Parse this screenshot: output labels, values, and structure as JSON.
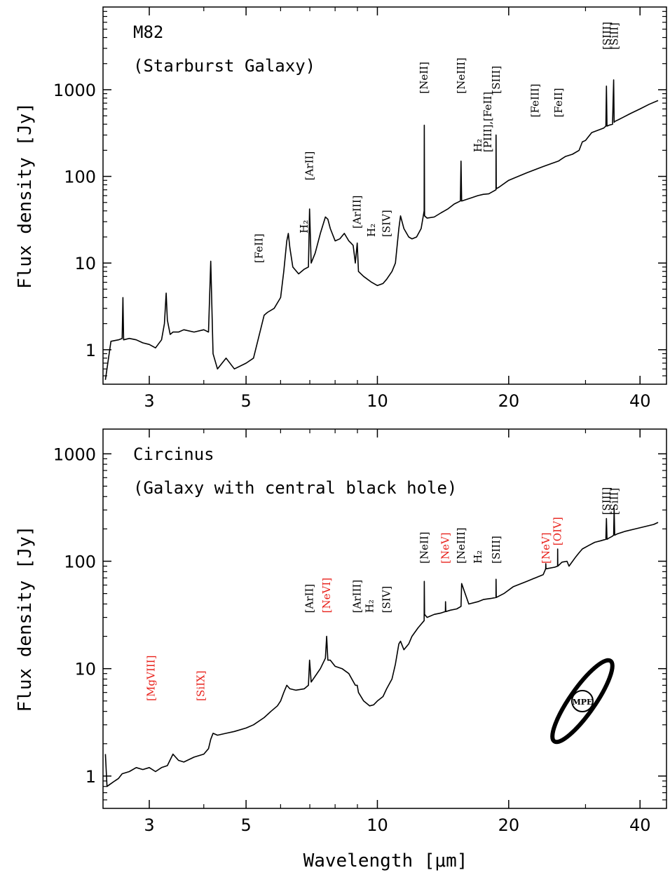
{
  "xlabel": "Wavelength [μm]",
  "chart_data": [
    {
      "type": "line",
      "title": "M82",
      "subtitle": "(Starburst Galaxy)",
      "xlabel": "",
      "ylabel": "Flux density [Jy]",
      "xscale": "log",
      "yscale": "log",
      "xlim": [
        2.35,
        46
      ],
      "ylim": [
        0.4,
        9000
      ],
      "xticks": [
        3,
        5,
        10,
        20,
        40
      ],
      "xtick_labels": [
        "3",
        "5",
        "10",
        "20",
        "40"
      ],
      "yticks": [
        1,
        10,
        100,
        1000
      ],
      "ytick_labels": [
        "1",
        "10",
        "100",
        "1000"
      ],
      "grid": false,
      "legend": "none",
      "series": [
        {
          "color": "#000000",
          "x": [
            2.38,
            2.45,
            2.55,
            2.6,
            2.61,
            2.62,
            2.7,
            2.8,
            2.9,
            3.0,
            3.1,
            3.2,
            3.25,
            3.28,
            3.3,
            3.35,
            3.4,
            3.5,
            3.6,
            3.8,
            4.0,
            4.1,
            4.15,
            4.2,
            4.3,
            4.5,
            4.7,
            5.0,
            5.2,
            5.5,
            5.6,
            5.8,
            6.0,
            6.1,
            6.2,
            6.25,
            6.3,
            6.4,
            6.6,
            6.8,
            6.95,
            6.99,
            7.05,
            7.2,
            7.4,
            7.6,
            7.7,
            7.8,
            8.0,
            8.2,
            8.4,
            8.6,
            8.7,
            8.8,
            8.9,
            8.99,
            9.05,
            9.3,
            9.7,
            10.0,
            10.3,
            10.5,
            10.8,
            11.0,
            11.2,
            11.3,
            11.5,
            11.8,
            12.0,
            12.3,
            12.6,
            12.8,
            12.81,
            12.83,
            13.0,
            13.5,
            14.0,
            14.5,
            15.0,
            15.5,
            15.55,
            15.6,
            16.5,
            17.0,
            17.5,
            18.0,
            18.5,
            18.7,
            18.71,
            18.73,
            19.0,
            20.0,
            22.0,
            24.0,
            25.0,
            26.0,
            26.5,
            27.0,
            28.0,
            29.0,
            29.5,
            30.0,
            31.0,
            32.0,
            33.0,
            33.4,
            33.5,
            33.6,
            34.0,
            34.6,
            34.8,
            34.9,
            35.0,
            36.0,
            38.0,
            40.0,
            42.0,
            44.0
          ],
          "y": [
            0.45,
            1.25,
            1.3,
            1.35,
            4.0,
            1.3,
            1.35,
            1.3,
            1.2,
            1.15,
            1.05,
            1.3,
            2.0,
            4.5,
            2.2,
            1.5,
            1.6,
            1.6,
            1.7,
            1.6,
            1.7,
            1.6,
            10.5,
            0.9,
            0.6,
            0.8,
            0.6,
            0.7,
            0.8,
            2.5,
            2.7,
            3.0,
            4.0,
            8.0,
            18.0,
            22.0,
            15.0,
            9.0,
            7.5,
            8.5,
            9.0,
            42.0,
            10.0,
            13.0,
            22.0,
            34.0,
            32.0,
            25.0,
            18.0,
            19.0,
            22.0,
            18.0,
            17.0,
            16.0,
            10.0,
            17.0,
            8.0,
            7.0,
            6.0,
            5.5,
            5.8,
            6.5,
            8.0,
            10.0,
            25.0,
            35.0,
            25.0,
            20.0,
            19.0,
            20.0,
            25.0,
            40.0,
            390.0,
            35.0,
            33.0,
            34.0,
            38.0,
            42.0,
            48.0,
            52.0,
            150.0,
            52.0,
            57.0,
            60.0,
            62.0,
            63.0,
            68.0,
            70.0,
            300.0,
            72.0,
            75.0,
            90.0,
            110.0,
            130.0,
            140.0,
            150.0,
            160.0,
            170.0,
            180.0,
            200.0,
            250.0,
            260.0,
            320.0,
            340.0,
            360.0,
            380.0,
            1100.0,
            380.0,
            390.0,
            400.0,
            1300.0,
            420.0,
            430.0,
            460.0,
            530.0,
            600.0,
            680.0,
            750.0
          ]
        }
      ],
      "annotations": [
        {
          "text": "[FeII]",
          "x": 5.35,
          "y": 10.0,
          "color": "#000000"
        },
        {
          "text": "H₂",
          "x": 6.8,
          "y": 22.0,
          "color": "#000000"
        },
        {
          "text": "[ArII]",
          "x": 6.99,
          "y": 90.0,
          "color": "#000000"
        },
        {
          "text": "[ArIII]",
          "x": 8.99,
          "y": 25.0,
          "color": "#000000"
        },
        {
          "text": "H₂",
          "x": 9.7,
          "y": 20.0,
          "color": "#000000"
        },
        {
          "text": "[SIV]",
          "x": 10.5,
          "y": 20.0,
          "color": "#000000"
        },
        {
          "text": "[NeII]",
          "x": 12.8,
          "y": 900.0,
          "color": "#000000"
        },
        {
          "text": "[NeIII]",
          "x": 15.55,
          "y": 900.0,
          "color": "#000000"
        },
        {
          "text": "H₂",
          "x": 17.0,
          "y": 190.0,
          "color": "#000000"
        },
        {
          "text": "[PIII],[FeII]",
          "x": 17.9,
          "y": 190.0,
          "color": "#000000"
        },
        {
          "text": "[SIII]",
          "x": 18.71,
          "y": 900.0,
          "color": "#000000"
        },
        {
          "text": "[FeIII]",
          "x": 23.0,
          "y": 480.0,
          "color": "#000000"
        },
        {
          "text": "[FeII]",
          "x": 26.0,
          "y": 480.0,
          "color": "#000000"
        },
        {
          "text": "[SIII]",
          "x": 33.6,
          "y": 2900.0,
          "color": "#000000"
        },
        {
          "text": "[SiII]",
          "x": 34.9,
          "y": 2900.0,
          "color": "#000000"
        }
      ]
    },
    {
      "type": "line",
      "title": "Circinus",
      "subtitle": "(Galaxy with central black hole)",
      "xlabel": "Wavelength [μm]",
      "ylabel": "Flux density [Jy]",
      "xscale": "log",
      "yscale": "log",
      "xlim": [
        2.35,
        46
      ],
      "ylim": [
        0.5,
        1700
      ],
      "xticks": [
        3,
        5,
        10,
        20,
        40
      ],
      "xtick_labels": [
        "3",
        "5",
        "10",
        "20",
        "40"
      ],
      "yticks": [
        1,
        10,
        100,
        1000
      ],
      "ytick_labels": [
        "1",
        "10",
        "100",
        "1000"
      ],
      "grid": false,
      "legend": "none",
      "logo": "MPE",
      "series": [
        {
          "color": "#000000",
          "x": [
            2.38,
            2.4,
            2.45,
            2.5,
            2.55,
            2.6,
            2.7,
            2.8,
            2.9,
            3.0,
            3.1,
            3.2,
            3.3,
            3.4,
            3.5,
            3.6,
            3.8,
            4.0,
            4.1,
            4.15,
            4.2,
            4.3,
            4.5,
            4.7,
            5.0,
            5.2,
            5.5,
            5.7,
            5.9,
            6.0,
            6.1,
            6.2,
            6.3,
            6.5,
            6.8,
            6.95,
            6.99,
            7.05,
            7.2,
            7.4,
            7.6,
            7.65,
            7.7,
            7.8,
            8.0,
            8.3,
            8.6,
            8.9,
            8.99,
            9.05,
            9.3,
            9.6,
            9.8,
            10.0,
            10.3,
            10.5,
            10.8,
            11.0,
            11.2,
            11.3,
            11.5,
            11.8,
            12.0,
            12.4,
            12.8,
            12.81,
            12.83,
            13.0,
            13.5,
            14.0,
            14.32,
            14.33,
            14.35,
            14.7,
            15.2,
            15.55,
            15.6,
            16.2,
            17.0,
            17.5,
            18.2,
            18.7,
            18.71,
            18.73,
            19.5,
            20.5,
            22.0,
            24.0,
            24.31,
            24.33,
            24.35,
            25.5,
            25.89,
            25.9,
            25.92,
            26.5,
            27.2,
            27.5,
            28.5,
            29.0,
            29.5,
            30.5,
            31.5,
            32.5,
            33.4,
            33.5,
            33.6,
            34.0,
            34.5,
            34.8,
            34.9,
            35.0,
            35.5,
            37.0,
            39.0,
            41.0,
            43.0,
            44.0
          ],
          "y": [
            1.6,
            0.8,
            0.85,
            0.9,
            0.95,
            1.05,
            1.1,
            1.2,
            1.15,
            1.2,
            1.1,
            1.2,
            1.25,
            1.6,
            1.4,
            1.35,
            1.5,
            1.6,
            1.8,
            2.2,
            2.5,
            2.4,
            2.5,
            2.6,
            2.8,
            3.0,
            3.5,
            4.0,
            4.5,
            5.0,
            6.0,
            7.0,
            6.5,
            6.3,
            6.5,
            7.0,
            12.0,
            7.5,
            8.5,
            10.0,
            12.5,
            20.0,
            12.0,
            12.0,
            10.5,
            10.0,
            9.0,
            7.0,
            7.0,
            6.0,
            5.0,
            4.5,
            4.6,
            5.0,
            5.5,
            6.5,
            8.0,
            11.0,
            17.0,
            18.0,
            15.0,
            17.0,
            20.0,
            24.0,
            28.0,
            65.0,
            32.0,
            30.0,
            32.0,
            33.0,
            34.0,
            42.0,
            34.0,
            35.0,
            36.0,
            38.0,
            62.0,
            40.0,
            42.0,
            44.0,
            45.0,
            46.0,
            68.0,
            46.0,
            50.0,
            58.0,
            65.0,
            75.0,
            85.0,
            95.0,
            85.0,
            88.0,
            90.0,
            130.0,
            90.0,
            98.0,
            100.0,
            90.0,
            110.0,
            120.0,
            130.0,
            140.0,
            150.0,
            155.0,
            160.0,
            250.0,
            160.0,
            165.0,
            170.0,
            175.0,
            310.0,
            175.0,
            180.0,
            190.0,
            200.0,
            210.0,
            220.0,
            230.0
          ]
        }
      ],
      "annotations": [
        {
          "text": "[MgVIII]",
          "x": 3.03,
          "y": 5.0,
          "color": "#e8201a"
        },
        {
          "text": "[SiIX]",
          "x": 3.94,
          "y": 5.0,
          "color": "#e8201a"
        },
        {
          "text": "[ArII]",
          "x": 6.99,
          "y": 33.0,
          "color": "#000000"
        },
        {
          "text": "[NeVI]",
          "x": 7.65,
          "y": 33.0,
          "color": "#e8201a"
        },
        {
          "text": "[ArIII]",
          "x": 8.99,
          "y": 33.0,
          "color": "#000000"
        },
        {
          "text": "H₂",
          "x": 9.6,
          "y": 33.0,
          "color": "#000000"
        },
        {
          "text": "[SIV]",
          "x": 10.5,
          "y": 33.0,
          "color": "#000000"
        },
        {
          "text": "[NeII]",
          "x": 12.81,
          "y": 95.0,
          "color": "#000000"
        },
        {
          "text": "[NeV]",
          "x": 14.33,
          "y": 95.0,
          "color": "#e8201a"
        },
        {
          "text": "[NeIII]",
          "x": 15.55,
          "y": 95.0,
          "color": "#000000"
        },
        {
          "text": "H₂",
          "x": 17.0,
          "y": 95.0,
          "color": "#000000"
        },
        {
          "text": "[SIII]",
          "x": 18.71,
          "y": 95.0,
          "color": "#000000"
        },
        {
          "text": "[NeV]",
          "x": 24.33,
          "y": 95.0,
          "color": "#e8201a"
        },
        {
          "text": "[OIV]",
          "x": 25.9,
          "y": 140.0,
          "color": "#e8201a"
        },
        {
          "text": "[SIII]",
          "x": 33.5,
          "y": 270.0,
          "color": "#000000"
        },
        {
          "text": "[SiII]",
          "x": 34.9,
          "y": 270.0,
          "color": "#000000"
        }
      ]
    }
  ]
}
